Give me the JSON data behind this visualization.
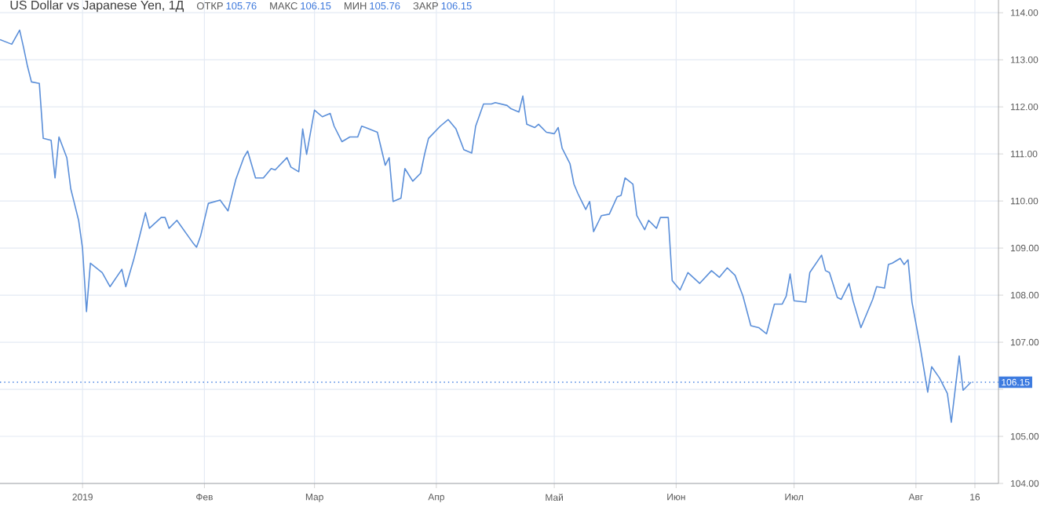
{
  "chart_data": {
    "type": "line",
    "title": "US Dollar vs Japanese Yen, 1Д",
    "annotations": [
      "ОТКР",
      "105.76",
      "МАКС",
      "106.15",
      "МИН",
      "105.76",
      "ЗАКР",
      "106.15"
    ],
    "x": [
      "2018-12-11",
      "2018-12-14",
      "2018-12-16",
      "2018-12-17",
      "2018-12-18",
      "2018-12-19",
      "2018-12-21",
      "2018-12-22",
      "2018-12-24",
      "2018-12-25",
      "2018-12-26",
      "2018-12-28",
      "2018-12-29",
      "2018-12-31",
      "2019-01-01",
      "2019-01-02",
      "2019-01-03",
      "2019-01-06",
      "2019-01-08",
      "2019-01-11",
      "2019-01-12",
      "2019-01-14",
      "2019-01-15",
      "2019-01-17",
      "2019-01-18",
      "2019-01-21",
      "2019-01-22",
      "2019-01-23",
      "2019-01-25",
      "2019-01-29",
      "2019-01-30",
      "2019-01-31",
      "2019-02-02",
      "2019-02-05",
      "2019-02-07",
      "2019-02-09",
      "2019-02-11",
      "2019-02-12",
      "2019-02-14",
      "2019-02-16",
      "2019-02-18",
      "2019-02-19",
      "2019-02-22",
      "2019-02-23",
      "2019-02-25",
      "2019-02-26",
      "2019-02-27",
      "2019-03-01",
      "2019-03-03",
      "2019-03-05",
      "2019-03-06",
      "2019-03-08",
      "2019-03-10",
      "2019-03-12",
      "2019-03-13",
      "2019-03-14",
      "2019-03-17",
      "2019-03-19",
      "2019-03-20",
      "2019-03-21",
      "2019-03-23",
      "2019-03-24",
      "2019-03-26",
      "2019-03-28",
      "2019-03-29",
      "2019-03-30",
      "2019-04-02",
      "2019-04-04",
      "2019-04-06",
      "2019-04-08",
      "2019-04-10",
      "2019-04-11",
      "2019-04-13",
      "2019-04-15",
      "2019-04-16",
      "2019-04-19",
      "2019-04-20",
      "2019-04-22",
      "2019-04-23",
      "2019-04-24",
      "2019-04-26",
      "2019-04-27",
      "2019-04-29",
      "2019-05-01",
      "2019-05-02",
      "2019-05-03",
      "2019-05-05",
      "2019-05-06",
      "2019-05-07",
      "2019-05-09",
      "2019-05-10",
      "2019-05-11",
      "2019-05-13",
      "2019-05-15",
      "2019-05-17",
      "2019-05-18",
      "2019-05-19",
      "2019-05-21",
      "2019-05-22",
      "2019-05-24",
      "2019-05-25",
      "2019-05-27",
      "2019-05-28",
      "2019-05-30",
      "2019-05-31",
      "2019-06-02",
      "2019-06-04",
      "2019-06-07",
      "2019-06-10",
      "2019-06-12",
      "2019-06-14",
      "2019-06-16",
      "2019-06-18",
      "2019-06-20",
      "2019-06-22",
      "2019-06-24",
      "2019-06-26",
      "2019-06-28",
      "2019-06-29",
      "2019-06-30",
      "2019-07-01",
      "2019-07-04",
      "2019-07-05",
      "2019-07-08",
      "2019-07-09",
      "2019-07-10",
      "2019-07-12",
      "2019-07-13",
      "2019-07-15",
      "2019-07-16",
      "2019-07-18",
      "2019-07-20",
      "2019-07-21",
      "2019-07-22",
      "2019-07-24",
      "2019-07-25",
      "2019-07-26",
      "2019-07-28",
      "2019-07-29",
      "2019-07-30",
      "2019-07-31",
      "2019-08-02",
      "2019-08-04",
      "2019-08-05",
      "2019-08-07",
      "2019-08-09",
      "2019-08-10",
      "2019-08-12",
      "2019-08-13",
      "2019-08-15"
    ],
    "values": [
      113.43,
      113.33,
      113.63,
      113.26,
      112.86,
      112.53,
      112.5,
      111.33,
      111.29,
      110.49,
      111.36,
      110.92,
      110.26,
      109.59,
      108.99,
      107.65,
      108.68,
      108.48,
      108.18,
      108.55,
      108.18,
      108.75,
      109.08,
      109.75,
      109.42,
      109.65,
      109.65,
      109.42,
      109.59,
      109.12,
      109.02,
      109.25,
      109.95,
      110.02,
      109.79,
      110.46,
      110.92,
      111.06,
      110.49,
      110.49,
      110.69,
      110.66,
      110.92,
      110.72,
      110.62,
      111.53,
      110.99,
      111.93,
      111.79,
      111.86,
      111.59,
      111.26,
      111.36,
      111.36,
      111.59,
      111.56,
      111.46,
      110.76,
      110.92,
      109.99,
      110.06,
      110.69,
      110.42,
      110.59,
      110.99,
      111.33,
      111.59,
      111.73,
      111.53,
      111.09,
      111.02,
      111.59,
      112.06,
      112.06,
      112.09,
      112.03,
      111.96,
      111.89,
      112.23,
      111.63,
      111.56,
      111.63,
      111.46,
      111.43,
      111.56,
      111.12,
      110.79,
      110.36,
      110.16,
      109.82,
      109.99,
      109.35,
      109.69,
      109.72,
      110.09,
      110.12,
      110.49,
      110.36,
      109.69,
      109.39,
      109.59,
      109.42,
      109.65,
      109.65,
      108.31,
      108.11,
      108.48,
      108.25,
      108.52,
      108.38,
      108.58,
      108.42,
      107.98,
      107.35,
      107.31,
      107.18,
      107.81,
      107.81,
      107.98,
      108.45,
      107.88,
      107.85,
      108.48,
      108.85,
      108.52,
      108.48,
      107.95,
      107.91,
      108.25,
      107.88,
      107.31,
      107.71,
      107.91,
      108.18,
      108.15,
      108.65,
      108.68,
      108.78,
      108.65,
      108.75,
      107.85,
      106.95,
      105.94,
      106.48,
      106.24,
      105.91,
      105.3,
      106.71,
      105.98,
      106.15
    ],
    "color": "#5b8fd9",
    "xlim": [
      "2018-12-11",
      "2019-08-22"
    ],
    "xticks": [
      {
        "value": "2019-01-01",
        "label": "2019"
      },
      {
        "value": "2019-02-01",
        "label": "Фев"
      },
      {
        "value": "2019-03-01",
        "label": "Мар"
      },
      {
        "value": "2019-04-01",
        "label": "Апр"
      },
      {
        "value": "2019-05-01",
        "label": "Май"
      },
      {
        "value": "2019-06-01",
        "label": "Июн"
      },
      {
        "value": "2019-07-01",
        "label": "Июл"
      },
      {
        "value": "2019-08-01",
        "label": "Авг"
      },
      {
        "value": "2019-08-16",
        "label": "16"
      }
    ],
    "ylim": [
      104,
      114.27
    ],
    "yticks": [
      {
        "value": 104,
        "label": "104.00"
      },
      {
        "value": 105,
        "label": "105.00"
      },
      {
        "value": 106,
        "label": null
      },
      {
        "value": 107,
        "label": "107.00"
      },
      {
        "value": 108,
        "label": "108.00"
      },
      {
        "value": 109,
        "label": "109.00"
      },
      {
        "value": 110,
        "label": "110.00"
      },
      {
        "value": 111,
        "label": "111.00"
      },
      {
        "value": 112,
        "label": "112.00"
      },
      {
        "value": 113,
        "label": "113.00"
      },
      {
        "value": 114,
        "label": "114.00"
      }
    ],
    "ref_lines": [
      {
        "axis": "y",
        "value": 106.15,
        "label": "106.15",
        "color": "#3d7be0",
        "line_style": "dotted"
      }
    ],
    "grid": true,
    "marker": "none",
    "line_style": "solid"
  }
}
